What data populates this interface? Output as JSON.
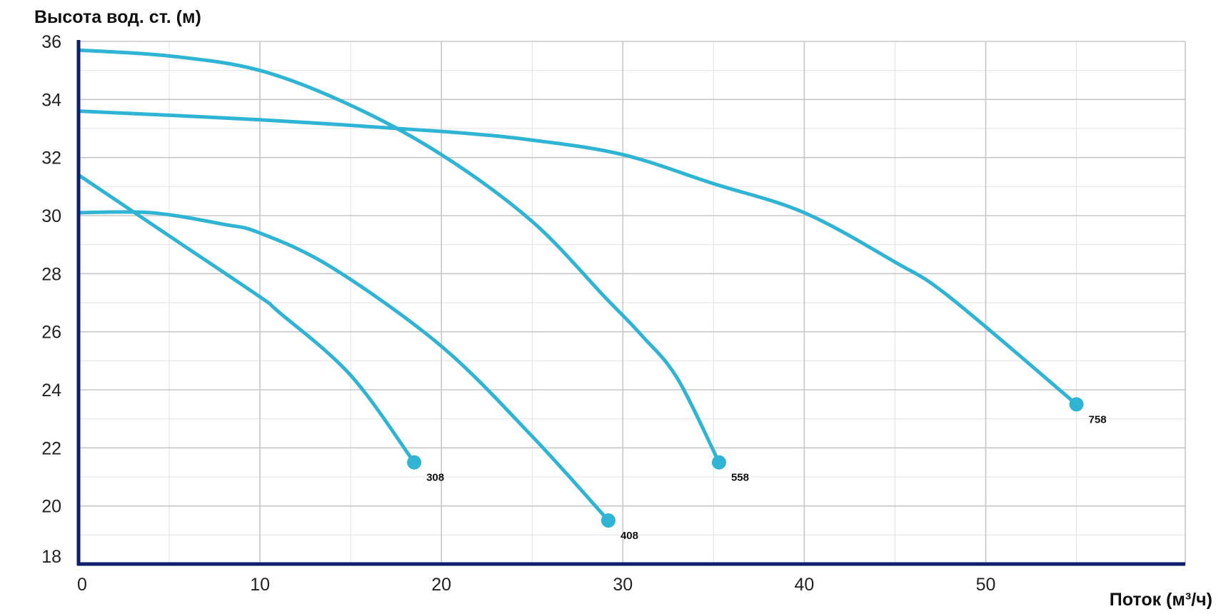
{
  "chart_data": {
    "type": "line",
    "title": "",
    "xlabel": "Поток (м³/ч)",
    "ylabel": "Высота вод. ст. (м)",
    "xlim": [
      0,
      61
    ],
    "ylim": [
      18,
      36
    ],
    "x_ticks": [
      0,
      10,
      20,
      30,
      40,
      50
    ],
    "y_ticks": [
      18,
      20,
      22,
      24,
      26,
      28,
      30,
      32,
      34,
      36
    ],
    "grid": true,
    "line_color": "#2FB4D4",
    "axis_color": "#0F1F6E",
    "series": [
      {
        "name": "308",
        "end_label": "308",
        "x": [
          0,
          5,
          10,
          11,
          15,
          18.5
        ],
        "y": [
          31.4,
          29.3,
          27.2,
          26.7,
          24.5,
          21.5
        ]
      },
      {
        "name": "408",
        "end_label": "408",
        "x": [
          0,
          4,
          8,
          10,
          14,
          20,
          25,
          29.2
        ],
        "y": [
          30.1,
          30.1,
          29.7,
          29.4,
          28.2,
          25.5,
          22.4,
          19.5
        ]
      },
      {
        "name": "558",
        "end_label": "558",
        "x": [
          0,
          5,
          10,
          15,
          20,
          25,
          29,
          31,
          33,
          35.3
        ],
        "y": [
          35.7,
          35.5,
          35.0,
          33.8,
          32.1,
          29.8,
          27.2,
          25.9,
          24.4,
          21.5
        ]
      },
      {
        "name": "758",
        "end_label": "758",
        "x": [
          0,
          10,
          20,
          25,
          30,
          35,
          40,
          45,
          48,
          55
        ],
        "y": [
          33.6,
          33.3,
          32.9,
          32.6,
          32.1,
          31.1,
          30.1,
          28.4,
          27.2,
          23.5
        ]
      }
    ]
  }
}
